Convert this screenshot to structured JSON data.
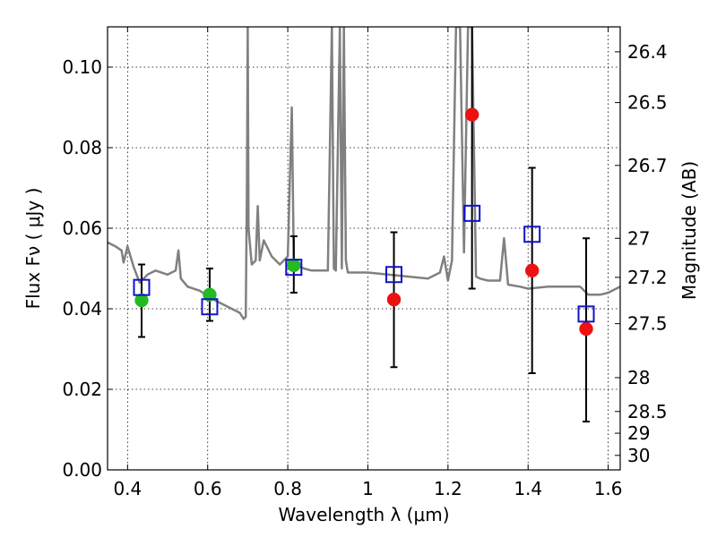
{
  "chart_data": {
    "type": "scatter",
    "xlabel": "Wavelength  λ (μm)",
    "ylabel": "Flux  Fν  ( μJy )",
    "ylabel_right": "Magnitude (AB)",
    "xlim": [
      0.35,
      1.63
    ],
    "ylim": [
      0.0,
      0.11
    ],
    "grid": true,
    "x_ticks": [
      {
        "value": 0.4,
        "label": "0.4"
      },
      {
        "value": 0.6,
        "label": "0.6"
      },
      {
        "value": 0.8,
        "label": "0.8"
      },
      {
        "value": 1.0,
        "label": "1"
      },
      {
        "value": 1.2,
        "label": "1.2"
      },
      {
        "value": 1.4,
        "label": "1.4"
      },
      {
        "value": 1.6,
        "label": "1.6"
      }
    ],
    "y_ticks": [
      {
        "value": 0.0,
        "label": "0.00"
      },
      {
        "value": 0.02,
        "label": "0.02"
      },
      {
        "value": 0.04,
        "label": "0.04"
      },
      {
        "value": 0.06,
        "label": "0.06"
      },
      {
        "value": 0.08,
        "label": "0.08"
      },
      {
        "value": 0.1,
        "label": "0.10"
      }
    ],
    "mag_ticks": [
      {
        "value": 0.1038,
        "label": "26.4"
      },
      {
        "value": 0.0912,
        "label": "26.5"
      },
      {
        "value": 0.0756,
        "label": "26.7"
      },
      {
        "value": 0.0575,
        "label": "27"
      },
      {
        "value": 0.0478,
        "label": "27.2"
      },
      {
        "value": 0.0363,
        "label": "27.5"
      },
      {
        "value": 0.0229,
        "label": "28"
      },
      {
        "value": 0.0145,
        "label": "28.5"
      },
      {
        "value": 0.0091,
        "label": "29"
      },
      {
        "value": 0.0036,
        "label": "30"
      }
    ],
    "series": [
      {
        "marker": "green-circle",
        "color": "#22bb22",
        "x": [
          0.435,
          0.605,
          0.815
        ],
        "y": [
          0.0421,
          0.0435,
          0.0508
        ],
        "err_low": [
          0.033,
          0.037,
          0.044
        ],
        "err_high": [
          0.051,
          0.05,
          0.058
        ]
      },
      {
        "marker": "red-circle",
        "color": "#ee1111",
        "x": [
          1.065,
          1.26,
          1.41,
          1.545
        ],
        "y": [
          0.0423,
          0.0882,
          0.0495,
          0.035
        ],
        "err_low": [
          0.0255,
          0.045,
          0.024,
          0.012
        ],
        "err_high": [
          0.059,
          0.131,
          0.075,
          0.0575
        ]
      },
      {
        "marker": "blue-open-square",
        "color": "#1111cc",
        "x": [
          0.435,
          0.605,
          0.815,
          1.065,
          1.26,
          1.41,
          1.545
        ],
        "y": [
          0.0453,
          0.0405,
          0.0503,
          0.0485,
          0.0637,
          0.0585,
          0.0387
        ]
      },
      {
        "marker": "gray-line",
        "color": "#808080",
        "x": [
          0.35,
          0.37,
          0.385,
          0.39,
          0.4,
          0.415,
          0.43,
          0.45,
          0.47,
          0.5,
          0.52,
          0.527,
          0.533,
          0.55,
          0.58,
          0.62,
          0.65,
          0.68,
          0.69,
          0.695,
          0.698,
          0.7,
          0.702,
          0.71,
          0.72,
          0.725,
          0.73,
          0.74,
          0.76,
          0.78,
          0.8,
          0.81,
          0.815,
          0.82,
          0.84,
          0.86,
          0.9,
          0.91,
          0.915,
          0.92,
          0.93,
          0.935,
          0.94,
          0.945,
          0.95,
          1.0,
          1.05,
          1.1,
          1.15,
          1.18,
          1.19,
          1.2,
          1.21,
          1.22,
          1.23,
          1.24,
          1.25,
          1.26,
          1.27,
          1.28,
          1.3,
          1.33,
          1.34,
          1.35,
          1.38,
          1.4,
          1.45,
          1.5,
          1.53,
          1.55,
          1.58,
          1.6,
          1.63
        ],
        "y": [
          0.0565,
          0.0555,
          0.0545,
          0.0515,
          0.0555,
          0.0505,
          0.0465,
          0.0485,
          0.0495,
          0.0485,
          0.0495,
          0.0545,
          0.0475,
          0.0455,
          0.0445,
          0.042,
          0.0405,
          0.039,
          0.0375,
          0.038,
          0.07,
          0.11,
          0.06,
          0.051,
          0.052,
          0.0655,
          0.052,
          0.057,
          0.053,
          0.051,
          0.053,
          0.09,
          0.052,
          0.051,
          0.05,
          0.0495,
          0.0495,
          0.11,
          0.05,
          0.0495,
          0.11,
          0.05,
          0.11,
          0.052,
          0.049,
          0.049,
          0.0485,
          0.048,
          0.0475,
          0.049,
          0.053,
          0.047,
          0.052,
          0.11,
          0.11,
          0.054,
          0.11,
          0.11,
          0.048,
          0.0475,
          0.047,
          0.047,
          0.0575,
          0.046,
          0.0455,
          0.045,
          0.0455,
          0.0455,
          0.0455,
          0.0435,
          0.0435,
          0.044,
          0.0455
        ]
      }
    ]
  }
}
